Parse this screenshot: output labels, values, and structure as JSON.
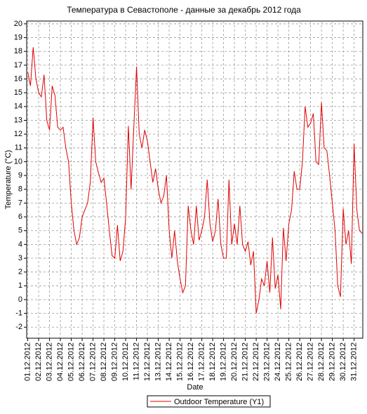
{
  "chart_data": {
    "type": "line",
    "title": "Температура в Севастополе - данные за декабрь 2012 года",
    "xlabel": "Date",
    "ylabel": "Temperature (°C)",
    "x": [
      0,
      0.25,
      0.5,
      0.75,
      1,
      1.25,
      1.5,
      1.75,
      2,
      2.25,
      2.5,
      2.75,
      3,
      3.25,
      3.5,
      3.75,
      4,
      4.25,
      4.5,
      4.75,
      5,
      5.25,
      5.5,
      5.75,
      6,
      6.25,
      6.5,
      6.75,
      7,
      7.25,
      7.5,
      7.75,
      8,
      8.25,
      8.5,
      8.75,
      9,
      9.25,
      9.5,
      9.75,
      10,
      10.25,
      10.5,
      10.75,
      11,
      11.25,
      11.5,
      11.75,
      12,
      12.25,
      12.5,
      12.75,
      13,
      13.25,
      13.5,
      13.75,
      14,
      14.25,
      14.5,
      14.75,
      15,
      15.25,
      15.5,
      15.75,
      16,
      16.25,
      16.5,
      16.75,
      17,
      17.25,
      17.5,
      17.75,
      18,
      18.25,
      18.5,
      18.75,
      19,
      19.25,
      19.5,
      19.75,
      20,
      20.25,
      20.5,
      20.75,
      21,
      21.25,
      21.5,
      21.75,
      22,
      22.25,
      22.5,
      22.75,
      23,
      23.25,
      23.5,
      23.75,
      24,
      24.25,
      24.5,
      24.75,
      25,
      25.25,
      25.5,
      25.75,
      26,
      26.25,
      26.5,
      26.75,
      27,
      27.25,
      27.5,
      27.75,
      28,
      28.25,
      28.5,
      28.75,
      29,
      29.25,
      29.5,
      29.75,
      30,
      30.25,
      30.5,
      30.75
    ],
    "series": [
      {
        "name": "Outdoor Temperature (Y1)",
        "color": "#e00000",
        "values": [
          16.5,
          15.5,
          18.3,
          16.0,
          15,
          14.7,
          16.3,
          13,
          12.3,
          15.5,
          14.8,
          12.5,
          12.3,
          12.5,
          11,
          10,
          7,
          5,
          4,
          4.5,
          6,
          6.5,
          7,
          8.5,
          13.2,
          10,
          9.2,
          8.5,
          8.8,
          7,
          5,
          3.2,
          3,
          5.4,
          2.8,
          3.5,
          6,
          12.6,
          8,
          12.5,
          16.9,
          12,
          11,
          12.3,
          11.5,
          10,
          8.5,
          9.5,
          8,
          7,
          7.5,
          9,
          5,
          3,
          5,
          2.8,
          1.5,
          0.5,
          1,
          6.8,
          5,
          4,
          6.8,
          4.3,
          5,
          6,
          8.7,
          5.5,
          4.2,
          5,
          7.3,
          4,
          3,
          3,
          8.7,
          4,
          5.5,
          4,
          6.8,
          4,
          3.5,
          4.2,
          2.5,
          3.5,
          -1,
          0,
          1.5,
          1,
          2.8,
          0.5,
          4.5,
          0.8,
          1.8,
          -0.7,
          5.2,
          2.8,
          5.5,
          6.5,
          9.3,
          8,
          8,
          10,
          14,
          12.5,
          12.8,
          13.5,
          10,
          9.8,
          14.3,
          11,
          10.8,
          9,
          7,
          5,
          1,
          0.2,
          6.6,
          4,
          5,
          2.6,
          11.3,
          6.5,
          5,
          4.8
        ]
      }
    ],
    "xlim": [
      -0.1,
      30.8
    ],
    "ylim": [
      -2.8,
      20.2
    ],
    "yticks": [
      -2,
      -1,
      0,
      1,
      2,
      3,
      4,
      5,
      6,
      7,
      8,
      9,
      10,
      11,
      12,
      13,
      14,
      15,
      16,
      17,
      18,
      19,
      20
    ],
    "xticks": [
      {
        "value": 0,
        "label": "01.12.2012"
      },
      {
        "value": 1,
        "label": "02.12.2012"
      },
      {
        "value": 2,
        "label": "03.12.2012"
      },
      {
        "value": 3,
        "label": "04.12.2012"
      },
      {
        "value": 4,
        "label": "05.12.2012"
      },
      {
        "value": 5,
        "label": "06.12.2012"
      },
      {
        "value": 6,
        "label": "07.12.2012"
      },
      {
        "value": 7,
        "label": "08.12.2012"
      },
      {
        "value": 8,
        "label": "09.12.2012"
      },
      {
        "value": 9,
        "label": "10.12.2012"
      },
      {
        "value": 10,
        "label": "11.12.2012"
      },
      {
        "value": 11,
        "label": "12.12.2012"
      },
      {
        "value": 12,
        "label": "13.12.2012"
      },
      {
        "value": 13,
        "label": "14.12.2012"
      },
      {
        "value": 14,
        "label": "15.12.2012"
      },
      {
        "value": 15,
        "label": "16.12.2012"
      },
      {
        "value": 16,
        "label": "17.12.2012"
      },
      {
        "value": 17,
        "label": "18.12.2012"
      },
      {
        "value": 18,
        "label": "19.12.2012"
      },
      {
        "value": 19,
        "label": "20.12.2012"
      },
      {
        "value": 20,
        "label": "21.12.2012"
      },
      {
        "value": 21,
        "label": "22.12.2012"
      },
      {
        "value": 22,
        "label": "23.12.2012"
      },
      {
        "value": 23,
        "label": "24.12.2012"
      },
      {
        "value": 24,
        "label": "25.12.2012"
      },
      {
        "value": 25,
        "label": "26.12.2012"
      },
      {
        "value": 26,
        "label": "27.12.2012"
      },
      {
        "value": 27,
        "label": "28.12.2012"
      },
      {
        "value": 28,
        "label": "29.12.2012"
      },
      {
        "value": 29,
        "label": "30.12.2012"
      },
      {
        "value": 30,
        "label": "31.12.2012"
      }
    ],
    "grid": true
  }
}
